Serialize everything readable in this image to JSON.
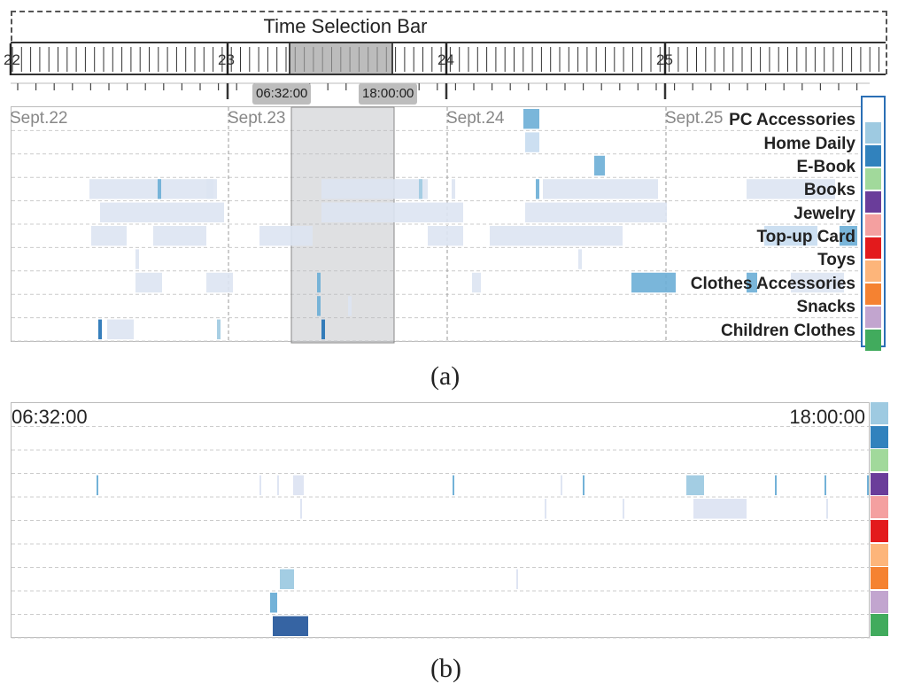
{
  "panel_a": {
    "title": "Time Selection Bar",
    "ruler_labels": [
      "22",
      "23",
      "24",
      "25"
    ],
    "selection": {
      "start_label": "06:32:00",
      "end_label": "18:00:00"
    },
    "day_labels": [
      "Sept.22",
      "Sept.23",
      "Sept.24",
      "Sept.25"
    ],
    "categories": [
      {
        "label": "",
        "color": "#ffffff"
      },
      {
        "label": "PC Accessories",
        "color": "#9ecae1"
      },
      {
        "label": "Home Daily",
        "color": "#3182bd"
      },
      {
        "label": "E-Book",
        "color": "#a1d99b"
      },
      {
        "label": "Books",
        "color": "#6a3d9a"
      },
      {
        "label": "Jewelry",
        "color": "#f4a0a0"
      },
      {
        "label": "Top-up Card",
        "color": "#e31a1c"
      },
      {
        "label": "Toys",
        "color": "#fdb57a"
      },
      {
        "label": "Clothes Accessories",
        "color": "#f58231"
      },
      {
        "label": "Snacks",
        "color": "#c2a5cf"
      },
      {
        "label": "Children Clothes",
        "color": "#41ab5d"
      }
    ],
    "caption": "(a)"
  },
  "panel_b": {
    "start_label": "06:32:00",
    "end_label": "18:00:00",
    "caption": "(b)"
  }
}
